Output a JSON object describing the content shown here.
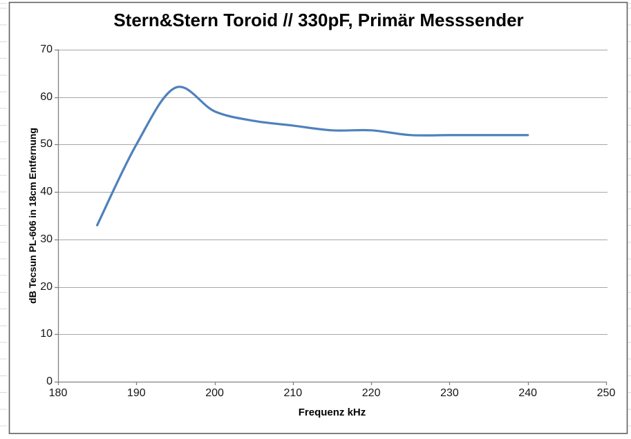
{
  "chart": {
    "title": "Stern&Stern Toroid // 330pF, Primär Messsender",
    "xlabel": "Frequenz kHz",
    "ylabel": "dB Tecsun PL-606 in 18cm Entfernung"
  },
  "chart_data": {
    "type": "line",
    "title": "Stern&Stern Toroid // 330pF, Primär Messsender",
    "xlabel": "Frequenz kHz",
    "ylabel": "dB Tecsun PL-606 in 18cm Entfernung",
    "x": [
      185,
      190,
      195,
      200,
      205,
      210,
      215,
      220,
      225,
      230,
      235,
      240
    ],
    "y": [
      33,
      50,
      62,
      57,
      55,
      54,
      53,
      53,
      52,
      52,
      52,
      52
    ],
    "xlim": [
      180,
      250
    ],
    "ylim": [
      0,
      70
    ],
    "xticks": [
      180,
      190,
      200,
      210,
      220,
      230,
      240,
      250
    ],
    "yticks": [
      0,
      10,
      20,
      30,
      40,
      50,
      60,
      70
    ],
    "grid": "horizontal",
    "legend": "none",
    "smooth": true,
    "line_color": "#4F81BD",
    "line_width": 3.25,
    "gridline_color": "#A6A6A6",
    "axis_color": "#808080",
    "tick_label_color": "#141414",
    "frame_color": "#5f5f5f",
    "row_line_color": "#d9d9d9",
    "background": "#ffffff"
  }
}
